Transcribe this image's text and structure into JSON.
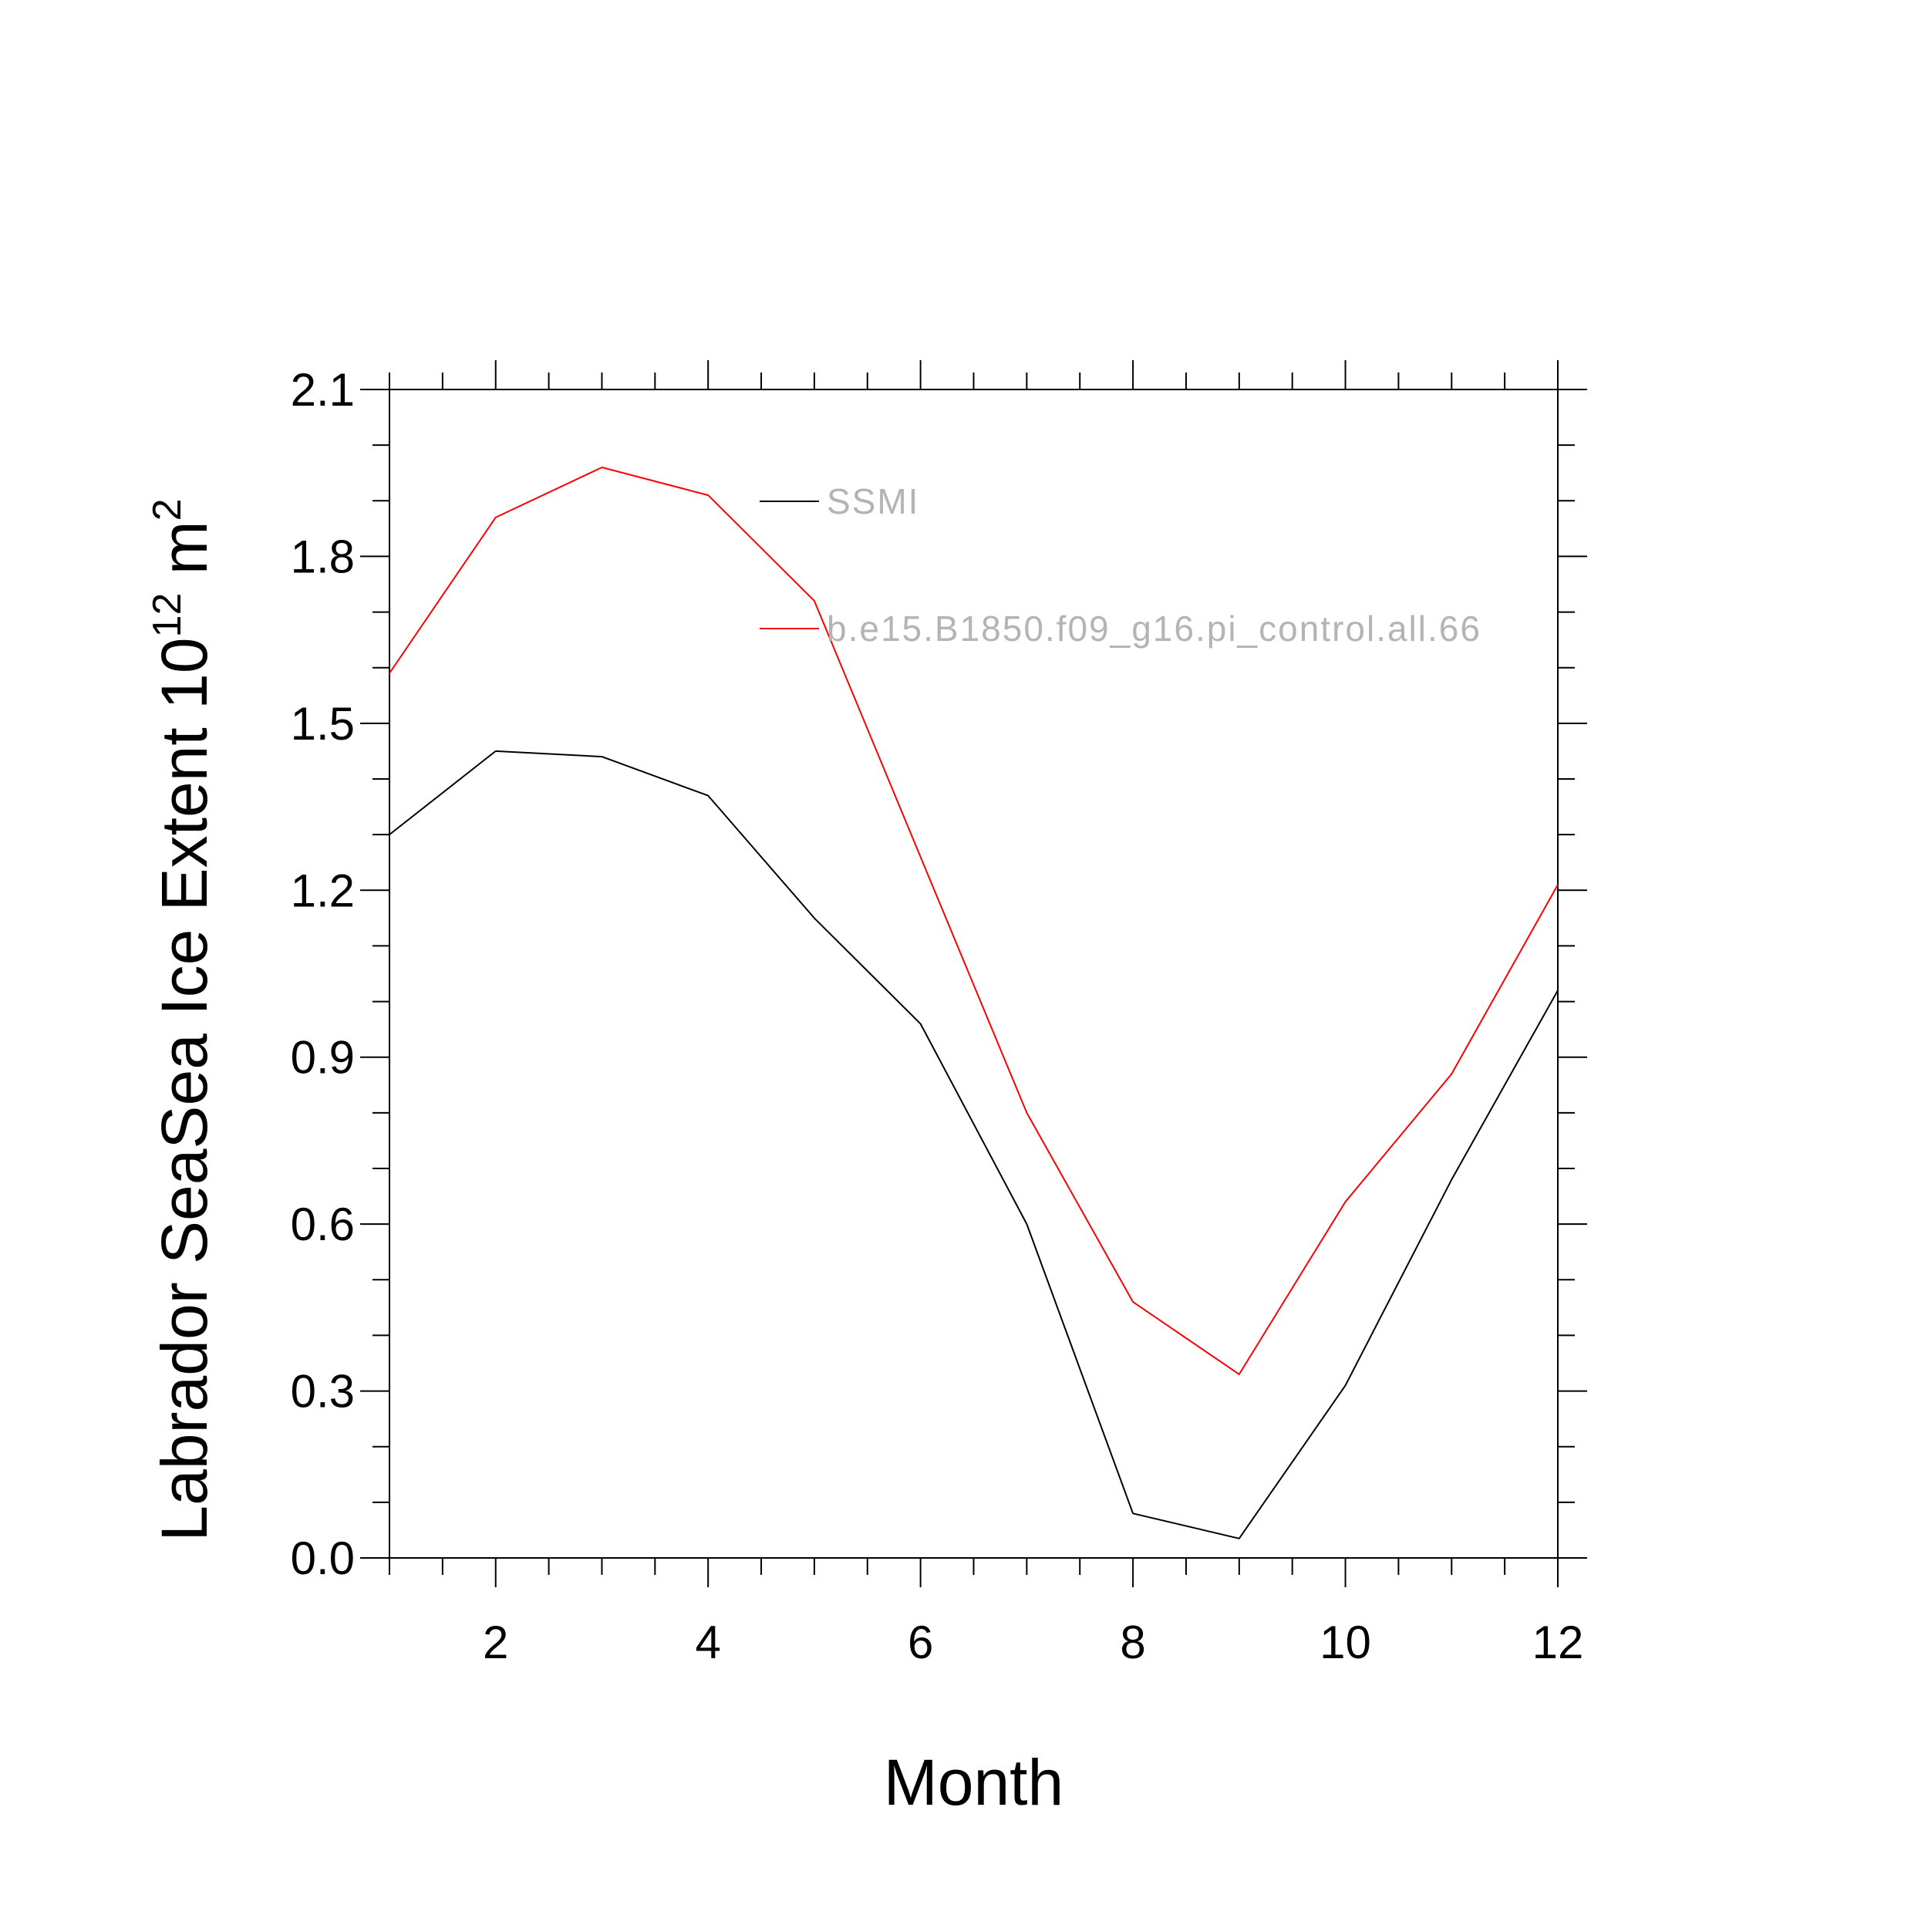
{
  "chart_data": {
    "type": "line",
    "title": "",
    "xlabel": "Month",
    "ylabel": "Labrador SeaSea Ice Extent 10",
    "ylabel_superscript": "12",
    "ylabel_unit": " m",
    "ylabel_unit_superscript": "2",
    "xlim": [
      1,
      12
    ],
    "ylim": [
      0.0,
      2.1
    ],
    "x_ticks": [
      2,
      4,
      6,
      8,
      10,
      12
    ],
    "x_tick_labels": [
      "2",
      "4",
      "6",
      "8",
      "10",
      "12"
    ],
    "x_minor_step": 0.5,
    "y_ticks": [
      0.0,
      0.3,
      0.6,
      0.9,
      1.2,
      1.5,
      1.8,
      2.1
    ],
    "y_tick_labels": [
      "0.0",
      "0.3",
      "0.6",
      "0.9",
      "1.2",
      "1.5",
      "1.8",
      "2.1"
    ],
    "y_minor_step": 0.1,
    "grid": false,
    "legend_position": "top-center",
    "x": [
      1,
      2,
      3,
      4,
      5,
      6,
      7,
      8,
      9,
      10,
      11,
      12
    ],
    "series": [
      {
        "name": "SSMI",
        "color": "#000000",
        "values": [
          1.3,
          1.45,
          1.44,
          1.37,
          1.15,
          0.96,
          0.6,
          0.08,
          0.035,
          0.31,
          0.68,
          1.02
        ]
      },
      {
        "name": "b.e15.B1850.f09_g16.pi_control.all.66",
        "color": "#ff0000",
        "values": [
          1.59,
          1.87,
          1.96,
          1.91,
          1.72,
          1.26,
          0.8,
          0.46,
          0.33,
          0.64,
          0.87,
          1.21
        ]
      }
    ]
  }
}
